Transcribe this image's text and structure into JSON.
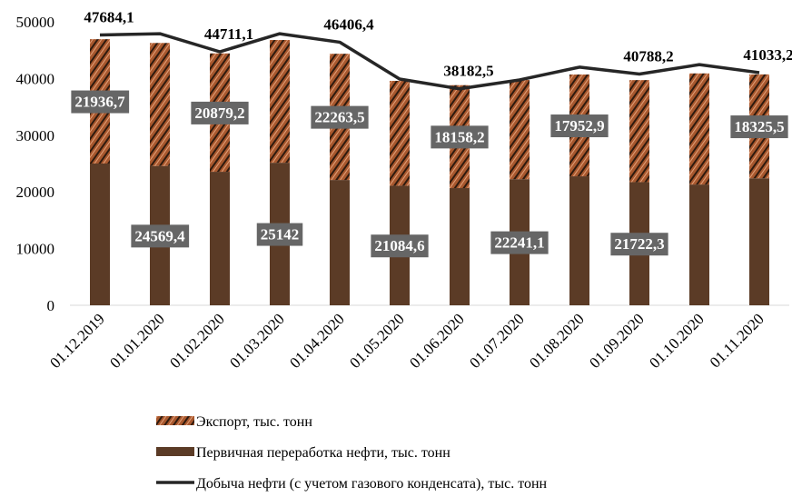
{
  "chart_data": {
    "type": "stacked-bar-line",
    "categories": [
      "01.12.2019",
      "01.01.2020",
      "01.02.2020",
      "01.03.2020",
      "01.04.2020",
      "01.05.2020",
      "01.06.2020",
      "01.07.2020",
      "01.08.2020",
      "01.09.2020",
      "01.10.2020",
      "01.11.2020"
    ],
    "ylim": [
      0,
      50000
    ],
    "yticks": [
      0,
      10000,
      20000,
      30000,
      40000,
      50000
    ],
    "series": [
      {
        "name": "Первичная переработка нефти, тыс. тонн",
        "kind": "bar",
        "color": "#5b3b26",
        "values": [
          25000,
          24569.4,
          23550,
          25142,
          22100,
          21084.6,
          20670,
          22241.1,
          22750,
          21722.3,
          21300,
          22400
        ],
        "value_labels": [
          null,
          "24569,4",
          null,
          "25142",
          null,
          "21084,6",
          null,
          "22241,1",
          null,
          "21722,3",
          null,
          null
        ]
      },
      {
        "name": "Экспорт, тыс. тонн",
        "kind": "bar",
        "color": "#a8582e",
        "values": [
          21936.7,
          21700,
          20879.2,
          21650,
          22263.5,
          18500,
          18158.2,
          17500,
          17952.9,
          18000,
          19600,
          18325.5
        ],
        "value_labels": [
          "21936,7",
          null,
          "20879,2",
          null,
          "22263,5",
          null,
          "18158,2",
          null,
          "17952,9",
          null,
          null,
          "18325,5"
        ]
      },
      {
        "name": "Добыча нефти (с учетом газового конденсата), тыс. тонн",
        "kind": "line",
        "color": "#262626",
        "values": [
          47684.1,
          47900,
          44711.1,
          47900,
          46406.4,
          39900,
          38182.5,
          39750,
          42000,
          40788.2,
          42450,
          41033.2
        ],
        "value_labels": [
          "47684,1",
          null,
          "44711,1",
          null,
          "46406,4",
          null,
          "38182,5",
          null,
          null,
          "40788,2",
          null,
          "41033,2"
        ]
      }
    ]
  }
}
